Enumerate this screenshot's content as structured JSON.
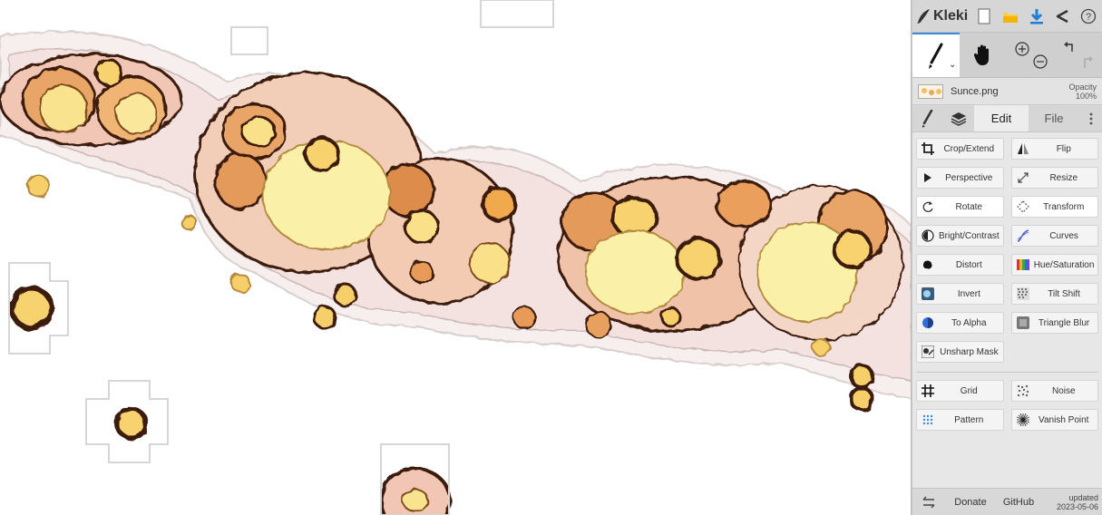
{
  "app": {
    "logo_text": "Kleki",
    "icons": {
      "new": "new-document-icon",
      "save": "folder-icon",
      "download": "download-icon",
      "share": "share-icon",
      "help": "help-icon"
    },
    "accent_color": "#3a8bd8"
  },
  "layer": {
    "name": "Sunce.png",
    "opacity_label": "Opacity",
    "opacity_value": "100%"
  },
  "tabs": {
    "edit": "Edit",
    "file": "File"
  },
  "edit_tools": {
    "crop": "Crop/Extend",
    "flip": "Flip",
    "perspective": "Perspective",
    "resize": "Resize",
    "rotate": "Rotate",
    "transform": "Transform",
    "bright": "Bright/Contrast",
    "curves": "Curves",
    "distort": "Distort",
    "hue": "Hue/Saturation",
    "invert": "Invert",
    "tilt": "Tilt Shift",
    "alpha": "To Alpha",
    "triangle": "Triangle Blur",
    "unsharp": "Unsharp Mask",
    "grid": "Grid",
    "noise": "Noise",
    "pattern": "Pattern",
    "vanish": "Vanish Point"
  },
  "footer": {
    "donate": "Donate",
    "github": "GitHub",
    "updated_label": "updated",
    "updated_date": "2023-05-06"
  }
}
